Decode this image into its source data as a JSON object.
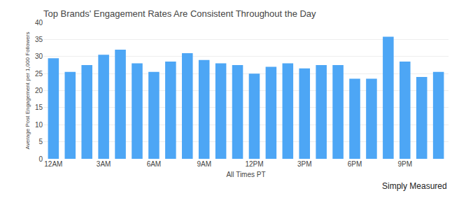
{
  "chart_data": {
    "type": "bar",
    "title": "Top Brands' Engagement Rates Are Consistent Throughout the Day",
    "xlabel": "All Times PT",
    "ylabel": "Average Post Engagement per 1,000 Followers",
    "categories": [
      "12AM",
      null,
      null,
      "3AM",
      null,
      null,
      "6AM",
      null,
      null,
      "9AM",
      null,
      null,
      "12PM",
      null,
      null,
      "3PM",
      null,
      null,
      "6PM",
      null,
      null,
      "9PM",
      null,
      null
    ],
    "values": [
      29.5,
      25.5,
      27.5,
      30.5,
      32.0,
      28.0,
      25.5,
      28.5,
      31.0,
      29.0,
      28.0,
      27.5,
      25.0,
      27.0,
      28.0,
      26.5,
      27.5,
      27.5,
      23.5,
      23.5,
      35.8,
      28.5,
      24.0,
      25.5
    ],
    "color": "#4da6f5",
    "ylim": [
      0,
      40
    ],
    "yticks": [
      0,
      5,
      10,
      15,
      20,
      25,
      30,
      35,
      40
    ],
    "grid": true,
    "annotations": [
      "Simply Measured"
    ]
  }
}
